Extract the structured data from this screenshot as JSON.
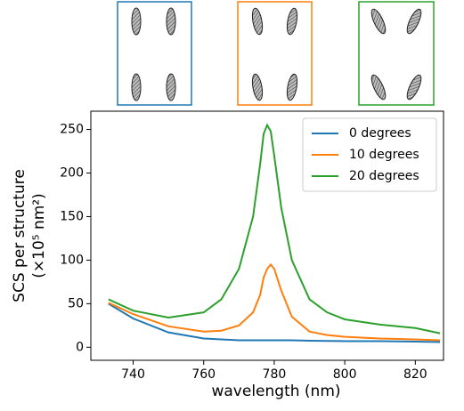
{
  "chart_data": {
    "type": "line",
    "x_label": "wavelength (nm)",
    "y_label": "SCS per structure",
    "y_label_unit": "(×10⁵ nm²)",
    "x": [
      733,
      740,
      750,
      760,
      765,
      770,
      774,
      776,
      777,
      778,
      779,
      780,
      782,
      785,
      790,
      795,
      800,
      810,
      820,
      827
    ],
    "series": [
      {
        "name": "0 degrees",
        "color": "#1f77b4",
        "values": [
          50,
          33,
          17,
          10,
          9,
          8,
          8,
          8,
          8,
          8,
          8,
          8,
          8,
          8,
          7.5,
          7.2,
          7,
          7,
          6.5,
          6
        ]
      },
      {
        "name": "10 degrees",
        "color": "#ff7f0e",
        "values": [
          51,
          38,
          24,
          18,
          19,
          25,
          40,
          60,
          80,
          90,
          95,
          90,
          65,
          35,
          18,
          14,
          12,
          10,
          9,
          8
        ]
      },
      {
        "name": "20 degrees",
        "color": "#2ca02c",
        "values": [
          55,
          42,
          34,
          40,
          55,
          90,
          150,
          210,
          245,
          255,
          248,
          220,
          160,
          100,
          55,
          40,
          32,
          26,
          22,
          16
        ]
      }
    ],
    "xlim": [
      728,
      828
    ],
    "ylim": [
      -15,
      271
    ],
    "xticks": [
      740,
      760,
      780,
      800,
      820
    ],
    "yticks": [
      0,
      50,
      100,
      150,
      200,
      250
    ],
    "legend": "upper-right"
  }
}
